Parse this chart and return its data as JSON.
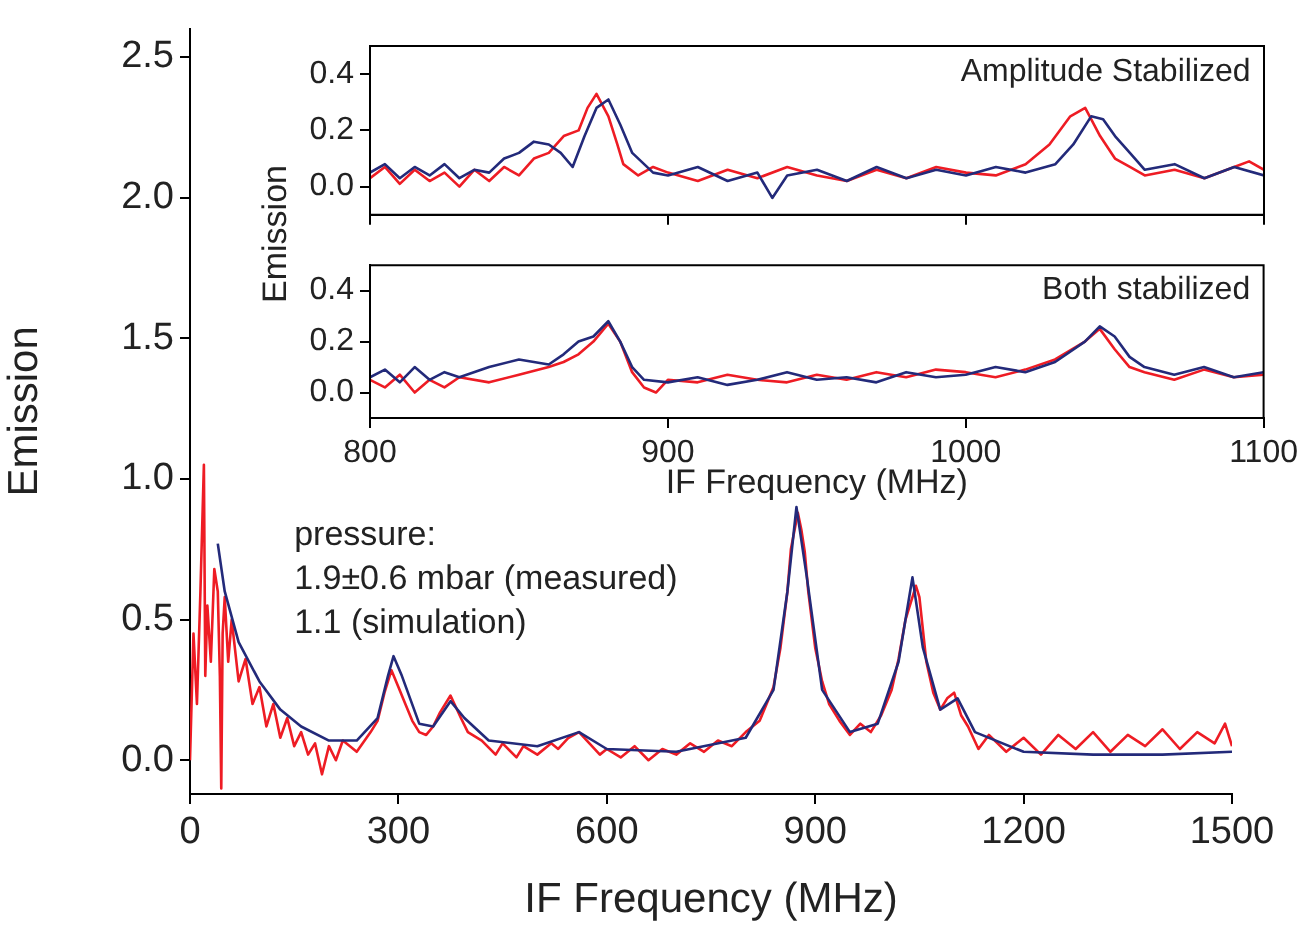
{
  "chart_data": [
    {
      "type": "line",
      "xlabel": "IF Frequency (MHz)",
      "ylabel": "Emission",
      "xlim": [
        0,
        1500
      ],
      "ylim": [
        -0.12,
        2.6
      ],
      "xticks": [
        0,
        300,
        600,
        900,
        1200,
        1500
      ],
      "yticks": [
        {
          "value": 0,
          "label": "0.0"
        },
        {
          "value": 0.5,
          "label": "0.5"
        },
        {
          "value": 1,
          "label": "1.0"
        },
        {
          "value": 1.5,
          "label": "1.5"
        },
        {
          "value": 2,
          "label": "2.0"
        },
        {
          "value": 2.5,
          "label": "2.5"
        }
      ],
      "annotations": [
        "pressure:",
        "1.9±0.6 mbar (measured)",
        "1.1 (simulation)"
      ],
      "series": [
        {
          "color": "#ee1c24",
          "x": [
            0,
            5,
            10,
            15,
            20,
            22,
            25,
            30,
            35,
            40,
            43,
            45,
            47,
            50,
            55,
            60,
            70,
            80,
            90,
            100,
            110,
            120,
            130,
            140,
            150,
            160,
            170,
            180,
            190,
            200,
            210,
            220,
            240,
            260,
            270,
            280,
            290,
            300,
            310,
            320,
            330,
            340,
            350,
            360,
            375,
            390,
            400,
            420,
            440,
            450,
            470,
            480,
            500,
            520,
            530,
            545,
            560,
            575,
            590,
            600,
            620,
            640,
            660,
            680,
            700,
            720,
            740,
            760,
            780,
            800,
            820,
            830,
            840,
            850,
            860,
            865,
            875,
            880,
            885,
            890,
            900,
            910,
            920,
            935,
            950,
            965,
            980,
            995,
            1010,
            1020,
            1030,
            1045,
            1050,
            1060,
            1070,
            1080,
            1090,
            1100,
            1110,
            1120,
            1135,
            1150,
            1175,
            1200,
            1225,
            1250,
            1275,
            1300,
            1325,
            1350,
            1375,
            1400,
            1425,
            1450,
            1475,
            1490,
            1500
          ],
          "values": [
            0.0,
            0.45,
            0.2,
            0.6,
            1.05,
            0.3,
            0.55,
            0.35,
            0.68,
            0.6,
            0.3,
            -0.1,
            0.45,
            0.58,
            0.35,
            0.5,
            0.28,
            0.36,
            0.2,
            0.26,
            0.12,
            0.2,
            0.08,
            0.15,
            0.05,
            0.1,
            0.02,
            0.06,
            -0.05,
            0.05,
            0.0,
            0.07,
            0.03,
            0.1,
            0.14,
            0.24,
            0.32,
            0.26,
            0.2,
            0.14,
            0.1,
            0.09,
            0.12,
            0.17,
            0.23,
            0.15,
            0.1,
            0.07,
            0.02,
            0.06,
            0.01,
            0.05,
            0.02,
            0.06,
            0.04,
            0.08,
            0.1,
            0.06,
            0.02,
            0.04,
            0.01,
            0.05,
            0.0,
            0.04,
            0.02,
            0.06,
            0.03,
            0.07,
            0.05,
            0.1,
            0.14,
            0.2,
            0.26,
            0.4,
            0.6,
            0.75,
            0.88,
            0.82,
            0.74,
            0.6,
            0.4,
            0.28,
            0.2,
            0.14,
            0.09,
            0.13,
            0.1,
            0.16,
            0.25,
            0.36,
            0.5,
            0.62,
            0.58,
            0.35,
            0.24,
            0.18,
            0.22,
            0.24,
            0.16,
            0.12,
            0.04,
            0.09,
            0.03,
            0.08,
            0.02,
            0.09,
            0.04,
            0.1,
            0.03,
            0.09,
            0.05,
            0.11,
            0.04,
            0.1,
            0.06,
            0.13,
            0.05
          ]
        },
        {
          "color": "#232a7a",
          "x": [
            40,
            50,
            70,
            100,
            130,
            160,
            200,
            240,
            270,
            285,
            293,
            305,
            330,
            350,
            375,
            395,
            430,
            500,
            560,
            600,
            700,
            800,
            840,
            860,
            873,
            888,
            910,
            950,
            990,
            1020,
            1040,
            1055,
            1080,
            1105,
            1130,
            1200,
            1300,
            1400,
            1500
          ],
          "values": [
            0.77,
            0.6,
            0.42,
            0.28,
            0.18,
            0.12,
            0.07,
            0.07,
            0.15,
            0.3,
            0.37,
            0.3,
            0.13,
            0.12,
            0.21,
            0.15,
            0.07,
            0.05,
            0.1,
            0.04,
            0.03,
            0.08,
            0.25,
            0.6,
            0.9,
            0.65,
            0.25,
            0.1,
            0.13,
            0.35,
            0.65,
            0.4,
            0.18,
            0.22,
            0.1,
            0.03,
            0.02,
            0.02,
            0.03
          ]
        }
      ]
    },
    {
      "type": "line",
      "ylabel": "Emission",
      "xlim": [
        800,
        1100
      ],
      "ylim": [
        -0.1,
        0.5
      ],
      "tick_labels": "y",
      "xticks": [
        800,
        900,
        1000,
        1100
      ],
      "yticks": [
        {
          "value": 0,
          "label": "0.0"
        },
        {
          "value": 0.2,
          "label": "0.2"
        },
        {
          "value": 0.4,
          "label": "0.4"
        }
      ],
      "annotations": [
        "Amplitude Stabilized"
      ],
      "series": [
        {
          "color": "#ee1c24",
          "x": [
            800,
            805,
            810,
            815,
            820,
            825,
            830,
            835,
            840,
            845,
            850,
            855,
            860,
            865,
            870,
            873,
            876,
            880,
            883,
            885,
            890,
            895,
            900,
            910,
            920,
            930,
            940,
            950,
            960,
            970,
            980,
            990,
            1000,
            1010,
            1020,
            1028,
            1035,
            1040,
            1045,
            1050,
            1055,
            1060,
            1070,
            1080,
            1090,
            1095,
            1100
          ],
          "values": [
            0.03,
            0.07,
            0.01,
            0.06,
            0.02,
            0.05,
            0.0,
            0.06,
            0.02,
            0.07,
            0.04,
            0.1,
            0.12,
            0.18,
            0.2,
            0.28,
            0.33,
            0.25,
            0.15,
            0.08,
            0.04,
            0.07,
            0.05,
            0.02,
            0.06,
            0.03,
            0.07,
            0.04,
            0.02,
            0.06,
            0.03,
            0.07,
            0.05,
            0.04,
            0.08,
            0.15,
            0.25,
            0.28,
            0.18,
            0.1,
            0.07,
            0.04,
            0.06,
            0.03,
            0.07,
            0.09,
            0.06
          ]
        },
        {
          "color": "#232a7a",
          "x": [
            800,
            805,
            810,
            815,
            820,
            825,
            830,
            835,
            840,
            845,
            850,
            855,
            860,
            864,
            868,
            872,
            876,
            880,
            884,
            888,
            895,
            900,
            910,
            920,
            930,
            935,
            940,
            950,
            960,
            970,
            980,
            990,
            1000,
            1010,
            1020,
            1030,
            1036,
            1042,
            1046,
            1050,
            1055,
            1060,
            1070,
            1080,
            1090,
            1100
          ],
          "values": [
            0.05,
            0.08,
            0.03,
            0.07,
            0.04,
            0.08,
            0.03,
            0.06,
            0.05,
            0.1,
            0.12,
            0.16,
            0.15,
            0.12,
            0.07,
            0.18,
            0.28,
            0.31,
            0.22,
            0.12,
            0.05,
            0.04,
            0.07,
            0.02,
            0.05,
            -0.04,
            0.04,
            0.06,
            0.02,
            0.07,
            0.03,
            0.06,
            0.04,
            0.07,
            0.05,
            0.08,
            0.15,
            0.25,
            0.24,
            0.18,
            0.12,
            0.06,
            0.08,
            0.03,
            0.07,
            0.04
          ]
        }
      ]
    },
    {
      "type": "line",
      "xlabel": "IF Frequency (MHz)",
      "xlim": [
        800,
        1100
      ],
      "ylim": [
        -0.1,
        0.5
      ],
      "xticks": [
        800,
        900,
        1000,
        1100
      ],
      "yticks": [
        {
          "value": 0,
          "label": "0.0"
        },
        {
          "value": 0.2,
          "label": "0.2"
        },
        {
          "value": 0.4,
          "label": "0.4"
        }
      ],
      "annotations": [
        "Both stabilized"
      ],
      "series": [
        {
          "color": "#ee1c24",
          "x": [
            800,
            805,
            810,
            815,
            820,
            825,
            830,
            840,
            850,
            860,
            865,
            870,
            875,
            880,
            884,
            888,
            892,
            896,
            900,
            910,
            920,
            930,
            940,
            950,
            960,
            970,
            980,
            990,
            1000,
            1010,
            1020,
            1030,
            1040,
            1045,
            1050,
            1055,
            1060,
            1070,
            1080,
            1090,
            1100
          ],
          "values": [
            0.05,
            0.02,
            0.07,
            0.0,
            0.05,
            0.02,
            0.06,
            0.04,
            0.07,
            0.1,
            0.12,
            0.15,
            0.2,
            0.27,
            0.2,
            0.08,
            0.02,
            0.0,
            0.05,
            0.04,
            0.07,
            0.05,
            0.04,
            0.07,
            0.05,
            0.08,
            0.06,
            0.09,
            0.08,
            0.06,
            0.09,
            0.13,
            0.2,
            0.25,
            0.17,
            0.1,
            0.08,
            0.05,
            0.09,
            0.06,
            0.07
          ]
        },
        {
          "color": "#232a7a",
          "x": [
            800,
            805,
            810,
            815,
            820,
            825,
            830,
            840,
            850,
            860,
            865,
            870,
            875,
            880,
            884,
            888,
            892,
            900,
            910,
            920,
            930,
            940,
            950,
            960,
            970,
            980,
            990,
            1000,
            1010,
            1020,
            1030,
            1040,
            1045,
            1050,
            1055,
            1060,
            1070,
            1080,
            1090,
            1100
          ],
          "values": [
            0.06,
            0.09,
            0.04,
            0.1,
            0.05,
            0.08,
            0.06,
            0.1,
            0.13,
            0.11,
            0.15,
            0.2,
            0.22,
            0.28,
            0.2,
            0.1,
            0.05,
            0.04,
            0.06,
            0.03,
            0.05,
            0.08,
            0.05,
            0.06,
            0.04,
            0.08,
            0.06,
            0.07,
            0.1,
            0.08,
            0.12,
            0.2,
            0.26,
            0.22,
            0.14,
            0.1,
            0.07,
            0.1,
            0.06,
            0.08
          ]
        }
      ]
    }
  ]
}
